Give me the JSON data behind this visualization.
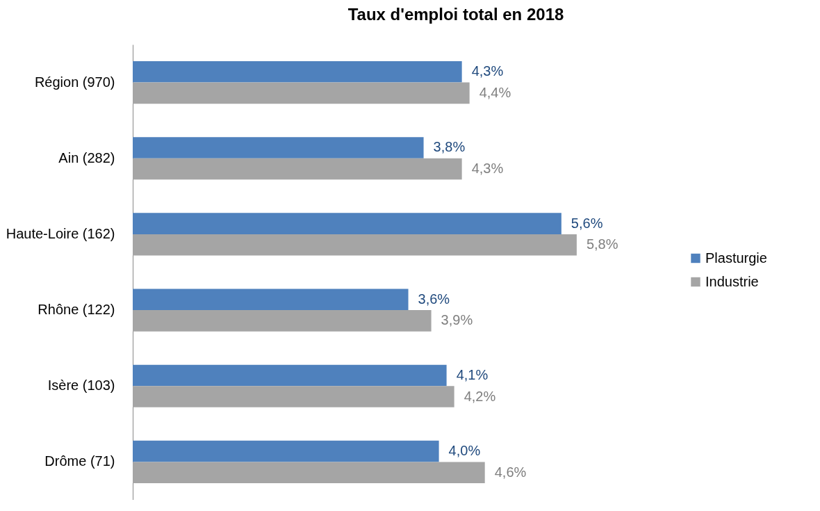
{
  "chart_data": {
    "type": "bar",
    "orientation": "horizontal",
    "title": "Taux d'emploi total en 2018",
    "categories": [
      "Région (970)",
      "Ain (282)",
      "Haute-Loire (162)",
      "Rhône (122)",
      "Isère (103)",
      "Drôme (71)"
    ],
    "series": [
      {
        "name": "Plasturgie",
        "color": "#4f81bd",
        "values": [
          4.3,
          3.8,
          5.6,
          3.6,
          4.1,
          4.0
        ],
        "value_labels": [
          "4,3%",
          "3,8%",
          "5,6%",
          "3,6%",
          "4,1%",
          "4,0%"
        ]
      },
      {
        "name": "Industrie",
        "color": "#a5a5a5",
        "values": [
          4.4,
          4.3,
          5.8,
          3.9,
          4.2,
          4.6
        ],
        "value_labels": [
          "4,4%",
          "4,3%",
          "5,8%",
          "3,9%",
          "4,2%",
          "4,6%"
        ]
      }
    ],
    "legend": "right"
  }
}
